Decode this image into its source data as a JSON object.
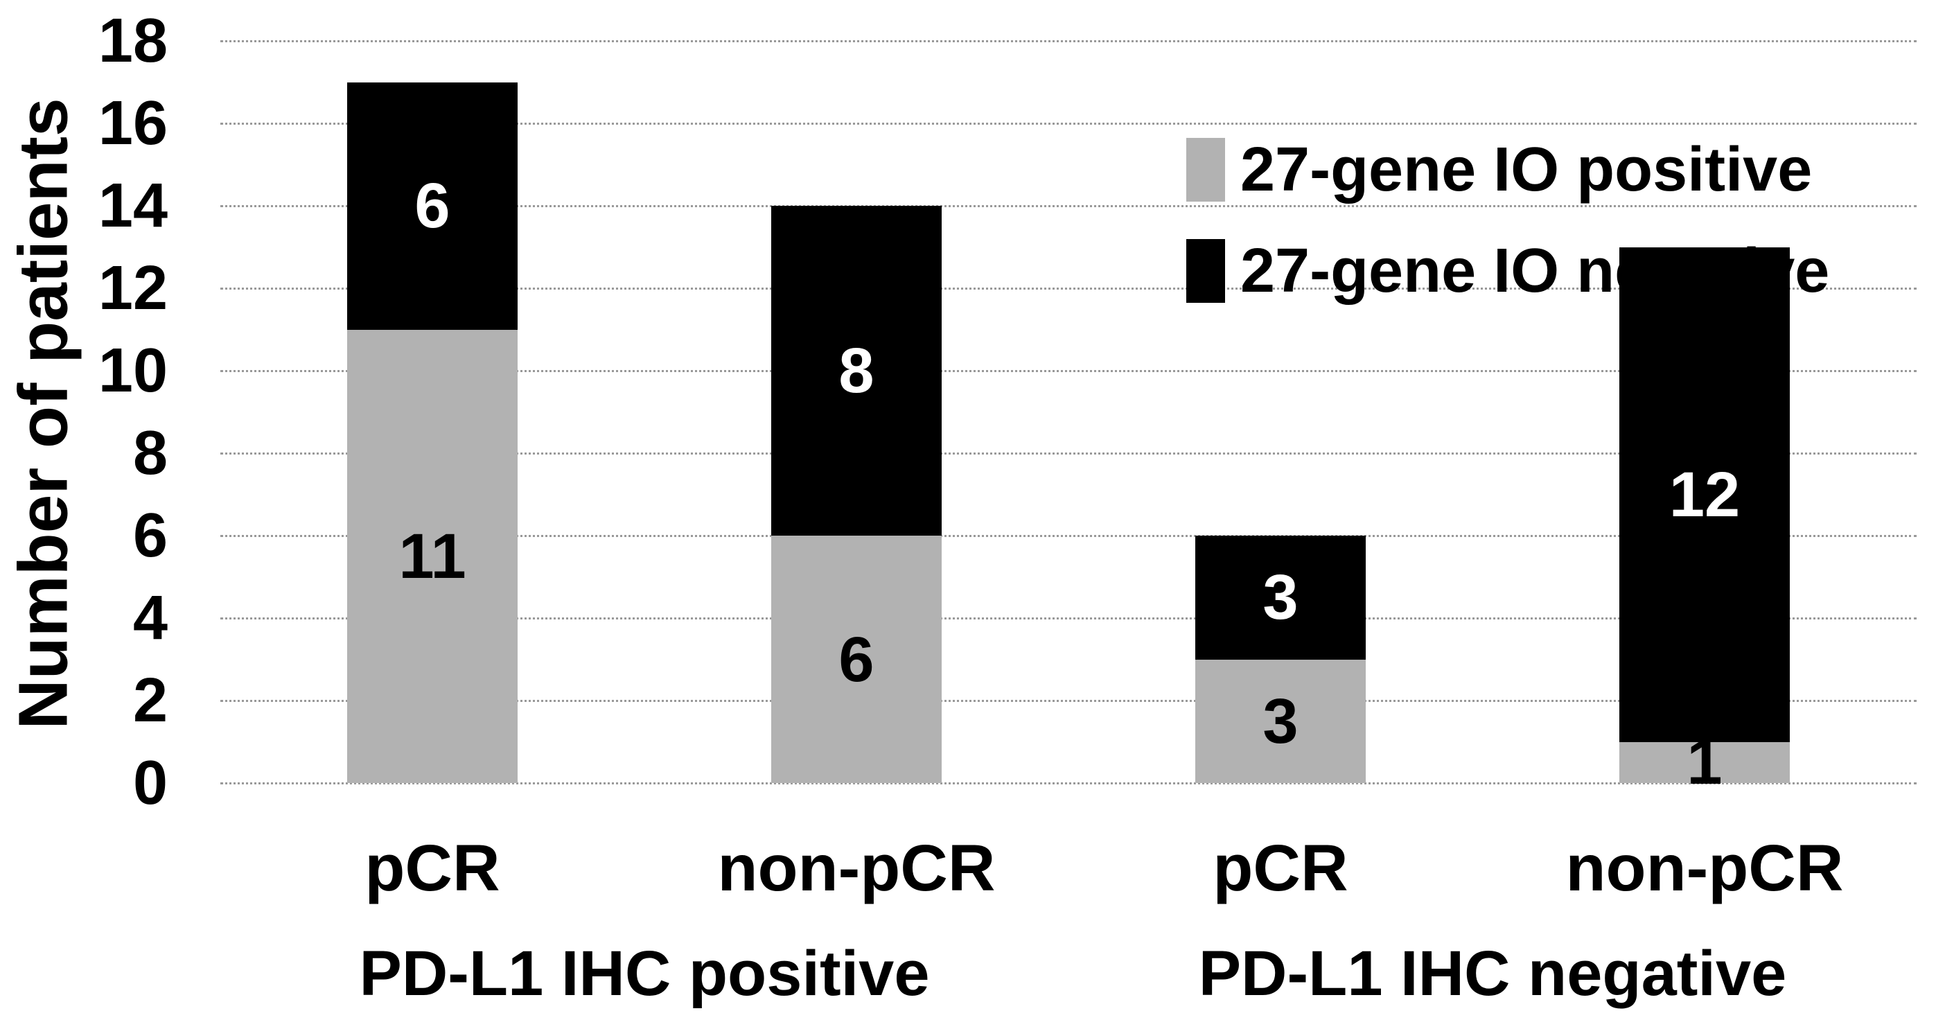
{
  "figure": {
    "background_color": "#ffffff",
    "text_color": "#000000",
    "gridline_color": "#999999"
  },
  "y_axis": {
    "title": "Number of patients",
    "tick_labels": [
      "0",
      "2",
      "4",
      "6",
      "8",
      "10",
      "12",
      "14",
      "16",
      "18"
    ]
  },
  "legend": {
    "items": [
      {
        "label": "27-gene IO positive",
        "color": "#b2b2b2"
      },
      {
        "label": "27-gene IO negative",
        "color": "#000000"
      }
    ]
  },
  "chart_data": {
    "type": "bar",
    "stacked": true,
    "title": "",
    "xlabel": "",
    "ylabel": "Number of patients",
    "ylim": [
      0,
      18
    ],
    "ytick_step": 2,
    "grid": true,
    "gridline_style": "dotted",
    "legend_position": "top-right",
    "categories": [
      "pCR",
      "non-pCR",
      "pCR",
      "non-pCR"
    ],
    "groups": [
      {
        "label": "PD-L1 IHC positive",
        "category_indexes": [
          0,
          1
        ]
      },
      {
        "label": "PD-L1 IHC negative",
        "category_indexes": [
          2,
          3
        ]
      }
    ],
    "series": [
      {
        "name": "27-gene IO positive",
        "color": "#b2b2b2",
        "label_color": "#000000",
        "values": [
          11,
          6,
          3,
          1
        ]
      },
      {
        "name": "27-gene IO negative",
        "color": "#000000",
        "label_color": "#ffffff",
        "values": [
          6,
          8,
          3,
          12
        ]
      }
    ],
    "totals": [
      17,
      14,
      6,
      13
    ]
  }
}
